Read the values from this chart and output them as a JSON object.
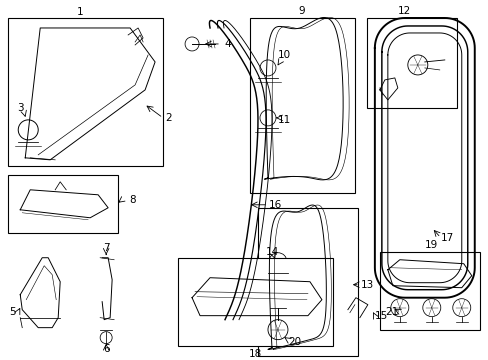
{
  "bg_color": "#ffffff",
  "lc": "#000000",
  "fig_w": 4.89,
  "fig_h": 3.6,
  "dpi": 100,
  "fs": 7.5
}
